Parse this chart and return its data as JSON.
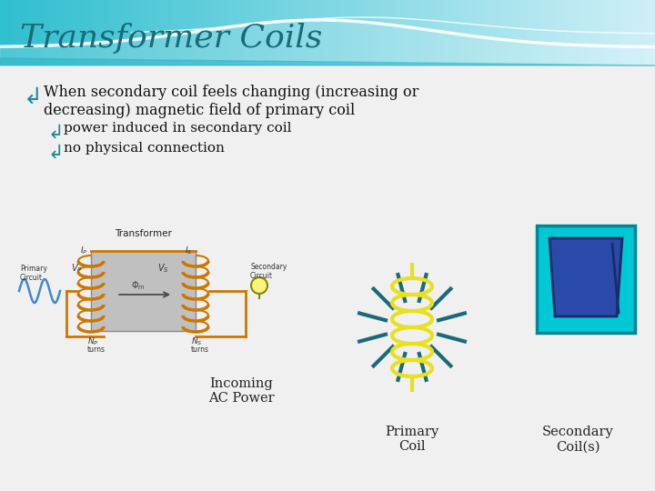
{
  "title": "Transformer Coils",
  "title_color": "#1a6b7a",
  "title_fontsize": 26,
  "bg_color": "#f0f0f0",
  "bullet_color": "#1a8a9a",
  "text_color": "#111111",
  "label_incoming": "Incoming\nAC Power",
  "label_primary": "Primary\nCoil",
  "label_secondary": "Secondary\nCoil(s)",
  "coil_color": "#e8e020",
  "ray_color": "#1a6b7a",
  "cyan_box_color": "#00c8d4",
  "cyan_box_border": "#008899",
  "triangle_fill": "#2a4aaa",
  "triangle_edge": "#1a2a6a",
  "header_left_color": "#30bfcf",
  "header_right_color": "#c0eaf0",
  "wire_color": "#cc7700",
  "core_color": "#bbbbbb",
  "sine_color": "#4488cc"
}
